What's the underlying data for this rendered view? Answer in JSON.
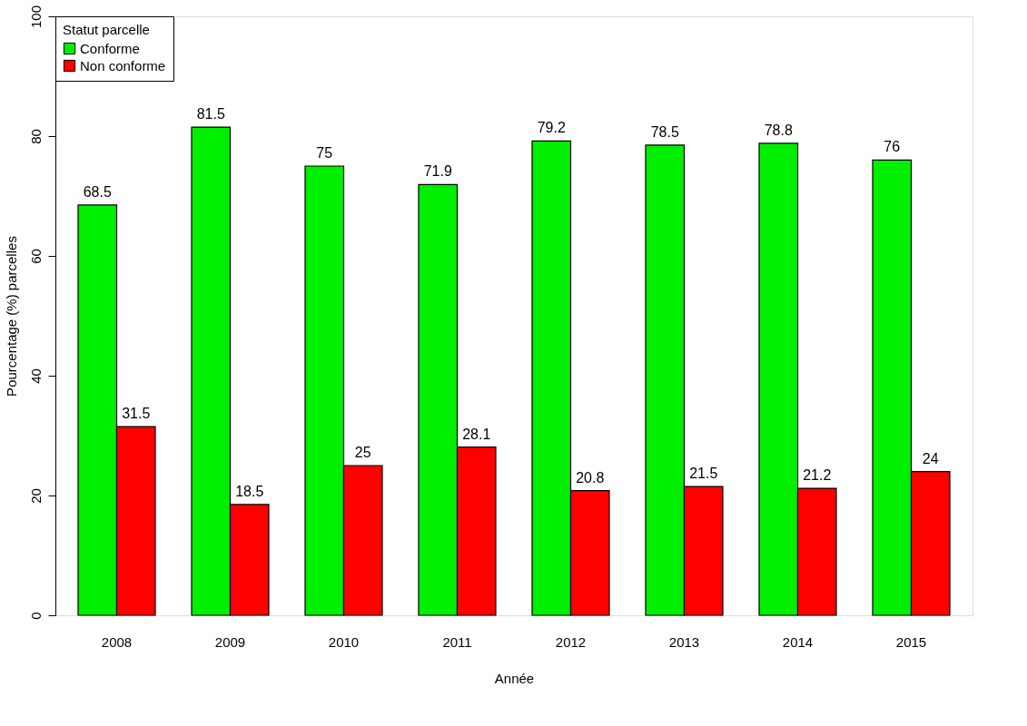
{
  "chart_data": {
    "type": "bar",
    "xlabel": "Année",
    "ylabel": "Pourcentage (%) parcelles",
    "legend_title": "Statut parcelle",
    "legend": "top left",
    "categories": [
      "2008",
      "2009",
      "2010",
      "2011",
      "2012",
      "2013",
      "2014",
      "2015"
    ],
    "series": [
      {
        "name": "Conforme",
        "color": "#00ee00",
        "values": [
          68.5,
          81.5,
          75,
          71.9,
          79.2,
          78.5,
          78.8,
          76
        ]
      },
      {
        "name": "Non conforme",
        "color": "#ff0000",
        "values": [
          31.5,
          18.5,
          25,
          28.1,
          20.8,
          21.5,
          21.2,
          24
        ]
      }
    ],
    "ylim": [
      0,
      100
    ],
    "yticks": [
      0,
      20,
      40,
      60,
      80,
      100
    ],
    "data_labels": true,
    "grid": false
  }
}
